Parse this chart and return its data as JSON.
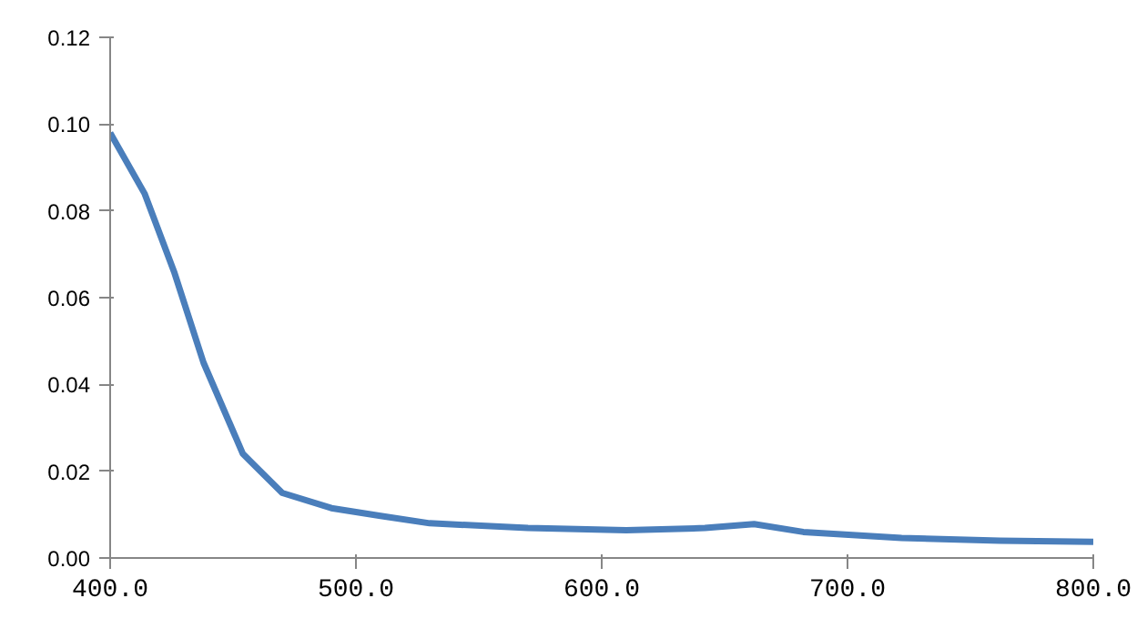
{
  "chart_data": {
    "type": "line",
    "x": [
      400,
      414,
      426,
      438,
      454,
      470,
      490,
      510,
      530,
      570,
      610,
      642,
      662,
      682,
      722,
      762,
      800
    ],
    "series": [
      {
        "color": "#4a7ebb",
        "values": [
          0.098,
          0.084,
          0.066,
          0.045,
          0.024,
          0.015,
          0.0115,
          0.0097,
          0.008,
          0.0069,
          0.0064,
          0.0069,
          0.0078,
          0.006,
          0.0046,
          0.004,
          0.0037
        ]
      }
    ],
    "xlim": [
      400,
      800
    ],
    "ylim": [
      0,
      0.12
    ],
    "xticks": [
      {
        "value": 400,
        "label": "400.0"
      },
      {
        "value": 500,
        "label": "500.0"
      },
      {
        "value": 600,
        "label": "600.0"
      },
      {
        "value": 700,
        "label": "700.0"
      },
      {
        "value": 800,
        "label": "800.0"
      }
    ],
    "yticks": [
      {
        "value": 0,
        "label": "0.00"
      },
      {
        "value": 0.02,
        "label": "0.02"
      },
      {
        "value": 0.04,
        "label": "0.04"
      },
      {
        "value": 0.06,
        "label": "0.06"
      },
      {
        "value": 0.08,
        "label": "0.08"
      },
      {
        "value": 0.1,
        "label": "0.10"
      },
      {
        "value": 0.12,
        "label": "0.12"
      }
    ],
    "grid": false,
    "marker": "none",
    "line_style": "solid"
  }
}
